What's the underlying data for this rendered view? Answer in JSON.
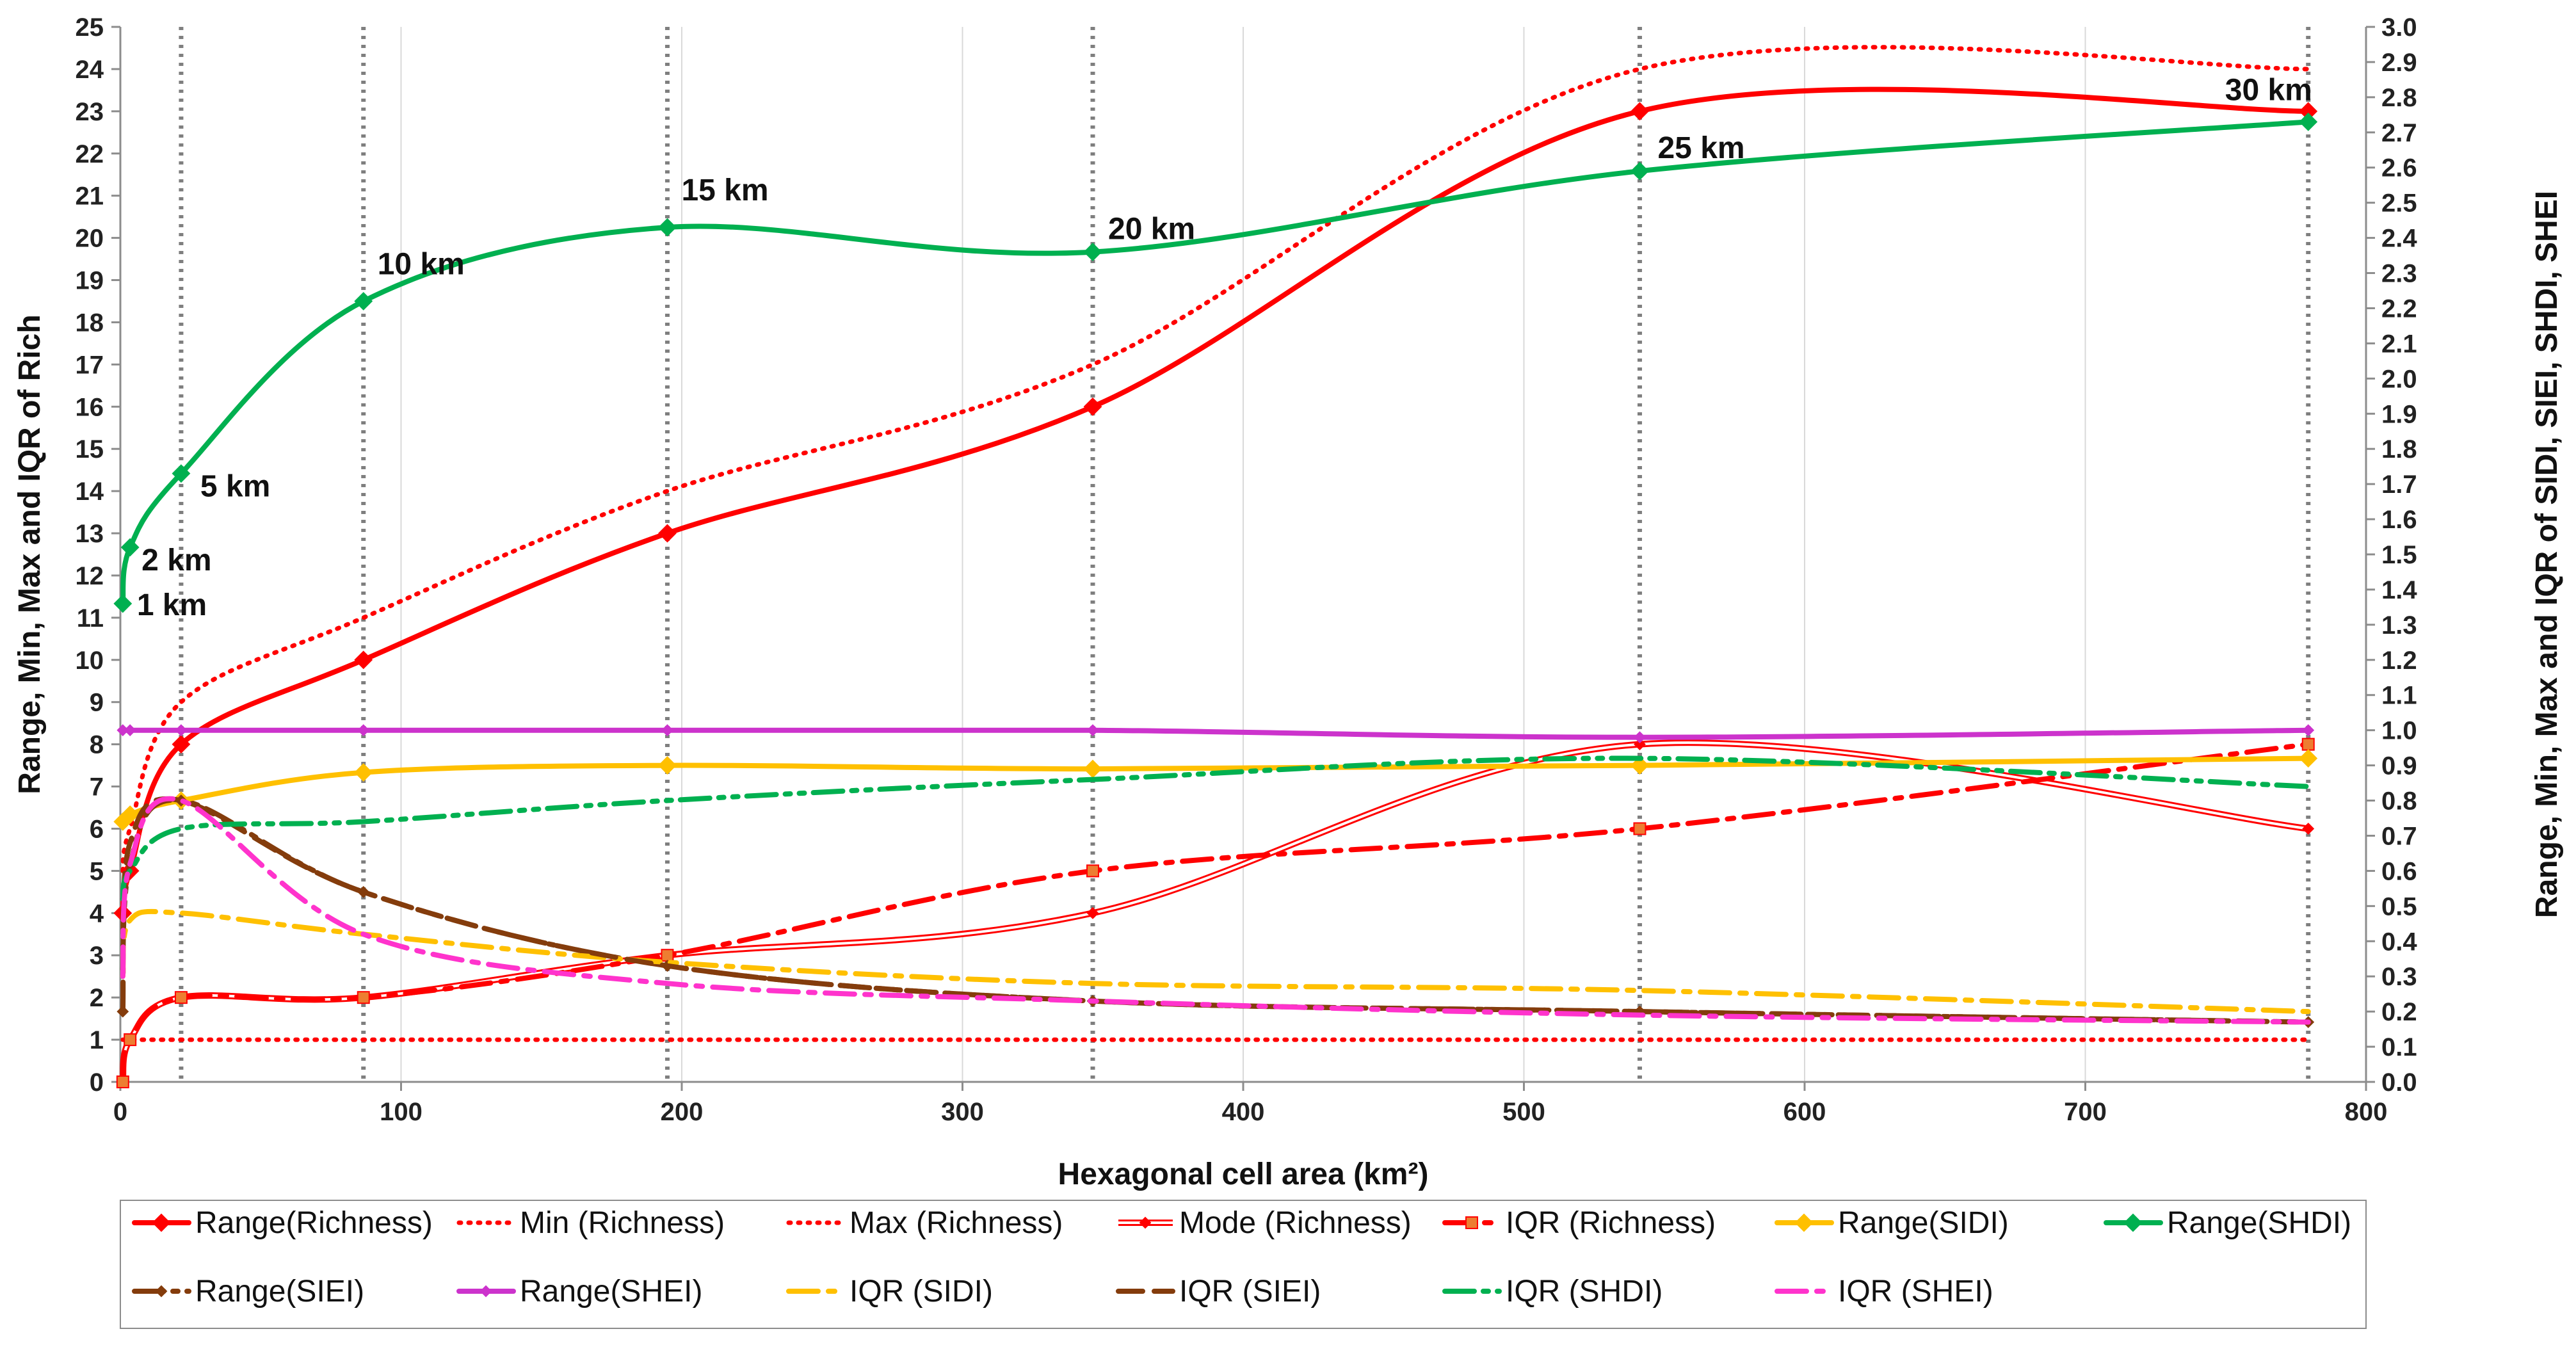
{
  "chart_data": {
    "type": "line",
    "xlabel": "Hexagonal cell area (km²)",
    "ylabel": "Range, Min, Max and IQR of Rich",
    "y2label": "Range, Min, Max and IQR of SIDI, SIEI, SHDI, SHEI",
    "xlim": [
      0,
      800
    ],
    "ylim": [
      0,
      25
    ],
    "y2lim": [
      0,
      3.0
    ],
    "xticks": [
      "0",
      "100",
      "200",
      "300",
      "400",
      "500",
      "600",
      "700",
      "800"
    ],
    "yticks": [
      "0",
      "1",
      "2",
      "3",
      "4",
      "5",
      "6",
      "7",
      "8",
      "9",
      "10",
      "11",
      "12",
      "13",
      "14",
      "15",
      "16",
      "17",
      "18",
      "19",
      "20",
      "21",
      "22",
      "23",
      "24",
      "25"
    ],
    "y2ticks": [
      "0.0",
      "0.1",
      "0.2",
      "0.3",
      "0.4",
      "0.5",
      "0.6",
      "0.7",
      "0.8",
      "0.9",
      "1.0",
      "1.1",
      "1.2",
      "1.3",
      "1.4",
      "1.5",
      "1.6",
      "1.7",
      "1.8",
      "1.9",
      "2.0",
      "2.1",
      "2.2",
      "2.3",
      "2.4",
      "2.5",
      "2.6",
      "2.7",
      "2.8",
      "2.9",
      "3.0"
    ],
    "grid": "vertical-major",
    "legend_placement": "bottom",
    "x": [
      0.87,
      3.46,
      21.65,
      86.6,
      194.86,
      346.41,
      541.27,
      779.42
    ],
    "reference_lines": {
      "x": [
        21.65,
        86.6,
        194.86,
        346.41,
        541.27,
        779.42
      ],
      "color": "#7f7f7f"
    },
    "annotations": [
      {
        "text": "1 km",
        "x": 0.87,
        "y2": 1.36
      },
      {
        "text": "2 km",
        "x": 3.46,
        "y2": 1.52
      },
      {
        "text": "5 km",
        "x": 21.65,
        "y2": 1.73
      },
      {
        "text": "10 km",
        "x": 86.6,
        "y2": 2.22
      },
      {
        "text": "15 km",
        "x": 194.86,
        "y2": 2.43
      },
      {
        "text": "20 km",
        "x": 346.41,
        "y2": 2.36
      },
      {
        "text": "25 km",
        "x": 541.27,
        "y2": 2.59
      },
      {
        "text": "30 km",
        "x": 779.42,
        "y2": 2.73
      }
    ],
    "series": [
      {
        "name": "Range(Richness)",
        "axis": "left",
        "color": "#ff0000",
        "style": "solid",
        "marker": "diamond",
        "values": [
          4,
          5,
          8,
          10,
          13,
          16,
          23,
          23
        ]
      },
      {
        "name": "Min (Richness)",
        "axis": "left",
        "color": "#ff0000",
        "style": "dotted",
        "marker": "none",
        "values": [
          1,
          1,
          1,
          1,
          1,
          1,
          1,
          1
        ]
      },
      {
        "name": "Max (Richness)",
        "axis": "left",
        "color": "#ff0000",
        "style": "dotted",
        "marker": "none",
        "values": [
          5,
          6,
          9,
          11,
          14,
          17,
          24,
          24
        ]
      },
      {
        "name": "Mode (Richness)",
        "axis": "left",
        "color": "#ff0000",
        "style": "double",
        "marker": "diamond-small",
        "values": [
          0,
          1,
          2,
          2,
          3,
          4,
          8,
          6
        ]
      },
      {
        "name": "IQR (Richness)",
        "axis": "left",
        "color": "#ff0000",
        "style": "dashdot",
        "marker": "square",
        "values": [
          0,
          1,
          2,
          2,
          3,
          5,
          6,
          8
        ]
      },
      {
        "name": "Range(SIDI)",
        "axis": "right",
        "color": "#ffc000",
        "style": "solid",
        "marker": "diamond",
        "values": [
          0.74,
          0.76,
          0.8,
          0.88,
          0.9,
          0.89,
          0.9,
          0.92
        ]
      },
      {
        "name": "Range(SHDI)",
        "axis": "right",
        "color": "#00b050",
        "style": "solid",
        "marker": "diamond",
        "values": [
          1.36,
          1.52,
          1.73,
          2.22,
          2.43,
          2.36,
          2.59,
          2.73
        ]
      },
      {
        "name": "Range(SIEI)",
        "axis": "right",
        "color": "#843c0c",
        "style": "dashdotdot",
        "marker": "diamond-small",
        "values": [
          0.2,
          0.62,
          0.8,
          0.54,
          0.33,
          0.23,
          0.2,
          0.17
        ]
      },
      {
        "name": "Range(SHEI)",
        "axis": "right",
        "color": "#cc33cc",
        "style": "solid",
        "marker": "diamond-small",
        "values": [
          1.0,
          1.0,
          1.0,
          1.0,
          1.0,
          1.0,
          0.98,
          1.0
        ]
      },
      {
        "name": "IQR (SIDI)",
        "axis": "right",
        "color": "#ffc000",
        "style": "dashdot",
        "marker": "none",
        "values": [
          0.3,
          0.46,
          0.48,
          0.42,
          0.34,
          0.28,
          0.26,
          0.2
        ]
      },
      {
        "name": "IQR (SIEI)",
        "axis": "right",
        "color": "#843c0c",
        "style": "dash",
        "marker": "none",
        "values": [
          0.32,
          0.68,
          0.8,
          0.54,
          0.33,
          0.23,
          0.2,
          0.17
        ]
      },
      {
        "name": "IQR (SHDI)",
        "axis": "right",
        "color": "#00b050",
        "style": "dashdotdot",
        "marker": "none",
        "values": [
          0.52,
          0.6,
          0.72,
          0.74,
          0.8,
          0.86,
          0.92,
          0.84
        ]
      },
      {
        "name": "IQR (SHEI)",
        "axis": "right",
        "color": "#ff33cc",
        "style": "dashdot",
        "marker": "none",
        "values": [
          0.3,
          0.62,
          0.8,
          0.42,
          0.28,
          0.23,
          0.19,
          0.17
        ]
      }
    ]
  }
}
